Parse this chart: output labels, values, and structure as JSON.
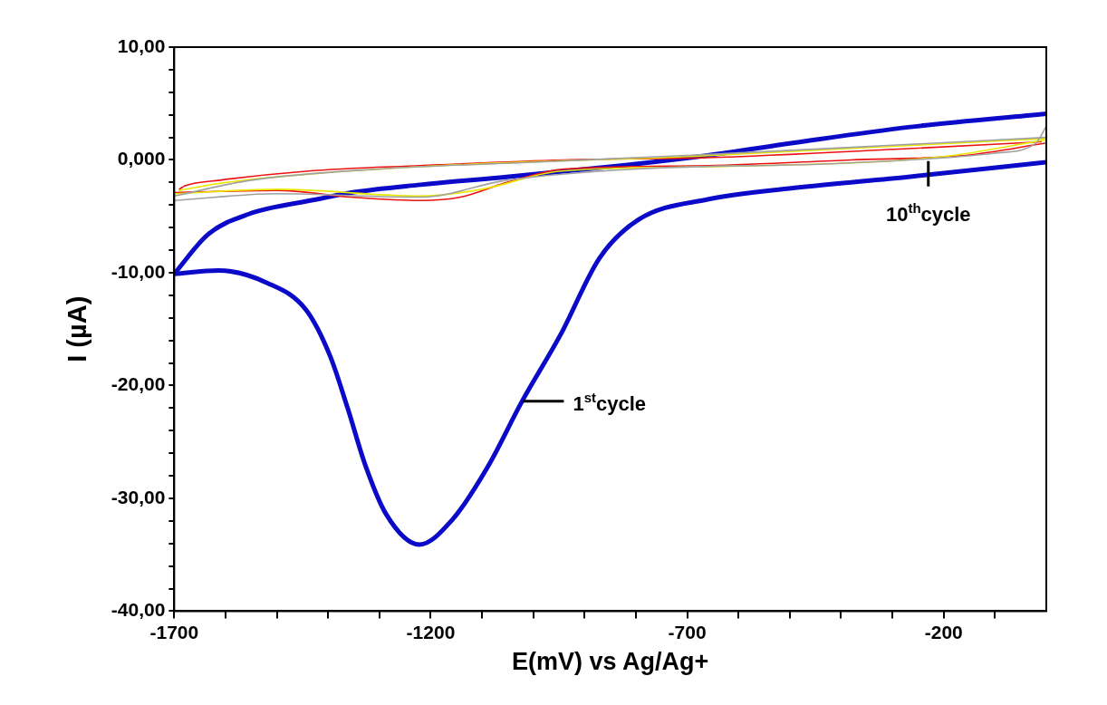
{
  "chart_data": {
    "type": "line",
    "xlabel": "E(mV) vs Ag/Ag+",
    "ylabel": "I (µA)",
    "xlim": [
      -1700,
      0
    ],
    "ylim": [
      -40,
      10
    ],
    "xticks": [
      -1700,
      {
        "value": -1600,
        "label": null
      },
      {
        "value": -1500,
        "label": null
      },
      {
        "value": -1400,
        "label": null
      },
      {
        "value": -1300,
        "label": null
      },
      -1200,
      {
        "value": -1100,
        "label": null
      },
      {
        "value": -1000,
        "label": null
      },
      {
        "value": -900,
        "label": null
      },
      {
        "value": -800,
        "label": null
      },
      -700,
      {
        "value": -600,
        "label": null
      },
      {
        "value": -500,
        "label": null
      },
      {
        "value": -400,
        "label": null
      },
      {
        "value": -300,
        "label": null
      },
      -200,
      {
        "value": -100,
        "label": null
      }
    ],
    "yticks": [
      {
        "value": -40,
        "label": "-40,00"
      },
      {
        "value": -38,
        "label": null
      },
      {
        "value": -36,
        "label": null
      },
      {
        "value": -34,
        "label": null
      },
      {
        "value": -32,
        "label": null
      },
      {
        "value": -30,
        "label": "-30,00"
      },
      {
        "value": -28,
        "label": null
      },
      {
        "value": -26,
        "label": null
      },
      {
        "value": -24,
        "label": null
      },
      {
        "value": -22,
        "label": null
      },
      {
        "value": -20,
        "label": "-20,00"
      },
      {
        "value": -18,
        "label": null
      },
      {
        "value": -16,
        "label": null
      },
      {
        "value": -14,
        "label": null
      },
      {
        "value": -12,
        "label": null
      },
      {
        "value": -10,
        "label": "-10,00"
      },
      {
        "value": -8,
        "label": null
      },
      {
        "value": -6,
        "label": null
      },
      {
        "value": -4,
        "label": null
      },
      {
        "value": -2,
        "label": null
      },
      {
        "value": 0,
        "label": "0,000"
      },
      {
        "value": 2,
        "label": null
      },
      {
        "value": 4,
        "label": null
      },
      {
        "value": 6,
        "label": null
      },
      {
        "value": 8,
        "label": null
      },
      {
        "value": 10,
        "label": "10,00"
      }
    ],
    "grid": false,
    "marker": "none",
    "line_style": "solid",
    "series": [
      {
        "color": "#a0a0a0",
        "x": [
          -1700,
          -1500,
          -1220,
          -1052,
          -800,
          -400,
          -100,
          -20,
          0
        ],
        "values": [
          -3.6,
          -3.0,
          -3.3,
          -1.8,
          -0.8,
          -0.3,
          0.6,
          1.5,
          3.0
        ]
      },
      {
        "color": "#a0a0a0",
        "x": [
          -1700,
          -1550,
          -1300,
          -1000,
          -700,
          -300,
          0
        ],
        "values": [
          -3.2,
          -1.8,
          -0.8,
          -0.2,
          0.4,
          1.3,
          2.0
        ]
      },
      {
        "color": "#e8e800",
        "x": [
          -1700,
          -1500,
          -1220,
          -1100,
          -950,
          -660,
          -200,
          0
        ],
        "values": [
          -3.0,
          -2.6,
          -3.2,
          -2.6,
          -1.0,
          -0.6,
          0.3,
          1.8
        ]
      },
      {
        "color": "#e8e800",
        "x": [
          -1690,
          -1600,
          -1220,
          -700,
          -300,
          0
        ],
        "values": [
          -2.7,
          -2.0,
          -0.6,
          0.3,
          1.2,
          1.9
        ]
      },
      {
        "color": "#ee1111",
        "x": [
          -1700,
          -1500,
          -1355,
          -1220,
          -1142,
          -1052,
          -940,
          -660,
          -381,
          -158,
          0
        ],
        "values": [
          -2.9,
          -2.7,
          -3.3,
          -3.6,
          -3.3,
          -2.0,
          -0.8,
          -0.5,
          0.0,
          0.4,
          1.5
        ]
      },
      {
        "color": "#ee1111",
        "x": [
          -1690,
          -1679,
          -1611,
          -1443,
          -1220,
          -940,
          -660,
          -269,
          -10
        ],
        "values": [
          -2.6,
          -2.3,
          -1.8,
          -1.0,
          -0.5,
          0.0,
          0.2,
          1.0,
          1.6
        ]
      },
      {
        "color": "#0a0ac8",
        "x": [
          -1700,
          -1614,
          -1519,
          -1443,
          -1396,
          -1362,
          -1328,
          -1287,
          -1222,
          -1158,
          -1090,
          -1022,
          -947,
          -871,
          -795,
          -660,
          -494,
          -269,
          0
        ],
        "values": [
          -10.1,
          -9.8,
          -10.9,
          -13.3,
          -17.4,
          -22.0,
          -27.0,
          -31.4,
          -34.1,
          -31.9,
          -27.3,
          -21.4,
          -15.5,
          -8.7,
          -5.3,
          -3.5,
          -2.5,
          -1.5,
          -0.2
        ]
      },
      {
        "color": "#0a0ac8",
        "x": [
          -1700,
          -1634,
          -1555,
          -1422,
          -1355,
          -1220,
          -1052,
          -829,
          -660,
          -494,
          -269,
          0
        ],
        "values": [
          -10.1,
          -6.6,
          -4.8,
          -3.5,
          -2.9,
          -2.2,
          -1.5,
          -0.5,
          0.4,
          1.5,
          2.9,
          4.1
        ]
      }
    ],
    "annotations": [
      {
        "text": "1$^{st}$cycle",
        "x": -1020,
        "y": -21.4
      },
      {
        "text": "10$^{th}$cycle",
        "x": -230,
        "y": -0.1
      }
    ]
  }
}
